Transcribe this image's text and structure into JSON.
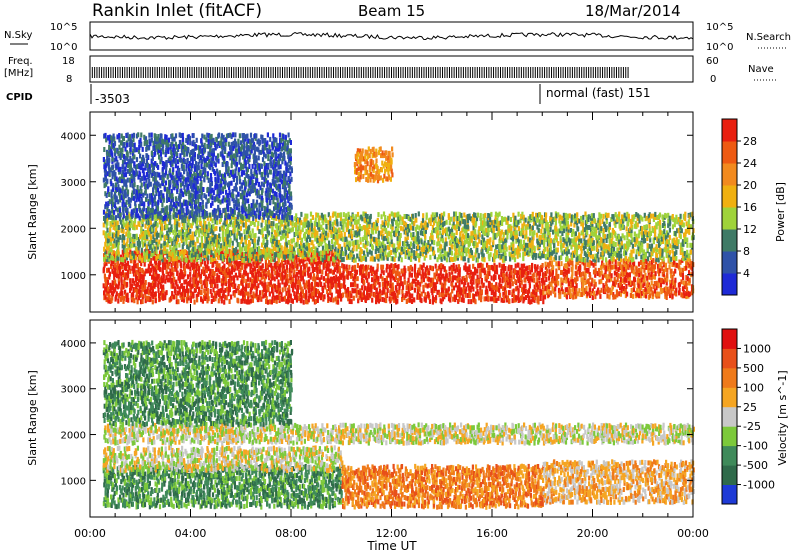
{
  "header": {
    "station": "Rankin Inlet (fitACF)",
    "beam": "Beam 15",
    "date": "18/Mar/2014"
  },
  "strips": {
    "noise": {
      "left_label": "N.Sky",
      "right_label": "N.Search",
      "left_ticks": [
        "10^5",
        "10^0"
      ],
      "right_ticks": [
        "10^5",
        "10^0"
      ]
    },
    "freq": {
      "left_label_line1": "Freq.",
      "left_label_line2": "[MHz]",
      "right_label": "Nave",
      "left_ticks": [
        "18",
        "8"
      ],
      "right_ticks": [
        "60",
        "0"
      ]
    },
    "cpid": {
      "label": "CPID",
      "entries": [
        {
          "text": "-3503",
          "time_h": 0.1
        },
        {
          "text": "normal (fast) 151",
          "time_h": 18.0
        }
      ]
    }
  },
  "chart_data": [
    {
      "type": "heatmap",
      "name": "Power",
      "xlabel": "",
      "ylabel": "Slant Range [km]",
      "x_range_hours": [
        0,
        24
      ],
      "ylim": [
        200,
        4500
      ],
      "yticks": [
        1000,
        2000,
        3000,
        4000
      ],
      "colorbar": {
        "label": "Power [dB]",
        "ticks": [
          "4",
          "8",
          "12",
          "16",
          "20",
          "24",
          "28"
        ],
        "colors": [
          "#1e2ad6",
          "#2f52a8",
          "#3f7a66",
          "#9fd33a",
          "#f0b010",
          "#f28a1e",
          "#ee5a12",
          "#e81f0f"
        ]
      },
      "features": [
        {
          "t0": 0.5,
          "t1": 10.0,
          "r0": 400,
          "r1": 1500,
          "level": 7
        },
        {
          "t0": 10.0,
          "t1": 18.0,
          "r0": 400,
          "r1": 1200,
          "level": 7
        },
        {
          "t0": 18.0,
          "t1": 24.0,
          "r0": 500,
          "r1": 1300,
          "level": 6
        },
        {
          "t0": 0.5,
          "t1": 24.0,
          "r0": 1300,
          "r1": 2300,
          "level": 3
        },
        {
          "t0": 0.5,
          "t1": 8.0,
          "r0": 2200,
          "r1": 4000,
          "level": 1
        },
        {
          "t0": 10.5,
          "t1": 12.0,
          "r0": 3000,
          "r1": 3700,
          "level": 5
        }
      ]
    },
    {
      "type": "heatmap",
      "name": "Velocity",
      "xlabel": "Time UT",
      "ylabel": "Slant Range [km]",
      "x_range_hours": [
        0,
        24
      ],
      "ylim": [
        200,
        4500
      ],
      "yticks": [
        1000,
        2000,
        3000,
        4000
      ],
      "xticks": [
        "00:00",
        "04:00",
        "08:00",
        "12:00",
        "16:00",
        "20:00",
        "00:00"
      ],
      "colorbar": {
        "label": "Velocity [m s^-1]",
        "ticks": [
          "1000",
          "500",
          "100",
          "25",
          "-25",
          "-100",
          "-500",
          "-1000"
        ],
        "colors": [
          "#1e3ad6",
          "#2f6a4a",
          "#3f8a5a",
          "#7cc93a",
          "#c8c8c8",
          "#f5a522",
          "#ef7a1a",
          "#e8501a",
          "#e01010"
        ]
      },
      "features": [
        {
          "t0": 0.5,
          "t1": 10.0,
          "r0": 400,
          "r1": 1300,
          "level": 2
        },
        {
          "t0": 0.5,
          "t1": 10.0,
          "r0": 1200,
          "r1": 1700,
          "level": 4
        },
        {
          "t0": 10.0,
          "t1": 18.0,
          "r0": 400,
          "r1": 1300,
          "level": 6
        },
        {
          "t0": 18.0,
          "t1": 24.0,
          "r0": 500,
          "r1": 1400,
          "level": 5
        },
        {
          "t0": 0.5,
          "t1": 24.0,
          "r0": 1800,
          "r1": 2200,
          "level": 4
        },
        {
          "t0": 0.5,
          "t1": 8.0,
          "r0": 2200,
          "r1": 4000,
          "level": 2
        }
      ]
    }
  ]
}
